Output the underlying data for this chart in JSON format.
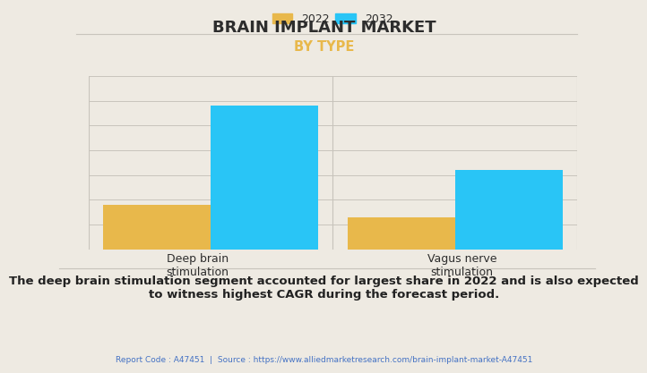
{
  "title": "BRAIN IMPLANT MARKET",
  "subtitle": "BY TYPE",
  "categories": [
    "Deep brain\nstimulation",
    "Vagus nerve\nstimulation"
  ],
  "years": [
    "2022",
    "2032"
  ],
  "values_2022": [
    1.8,
    1.3
  ],
  "values_2032": [
    5.8,
    3.2
  ],
  "color_2022": "#E8B84B",
  "color_2032": "#29C5F6",
  "subtitle_color": "#E8B84B",
  "title_color": "#2d2d2d",
  "background_color": "#EEEAE2",
  "grid_color": "#C8C4BC",
  "annotation_text": "The deep brain stimulation segment accounted for largest share in 2022 and is also expected\nto witness highest CAGR during the forecast period.",
  "annotation_color": "#222222",
  "footer_text": "Report Code : A47451  |  Source : https://www.alliedmarketresearch.com/brain-implant-market-A47451",
  "footer_color": "#4472C4",
  "ylim": [
    0,
    7
  ],
  "bar_width": 0.22
}
